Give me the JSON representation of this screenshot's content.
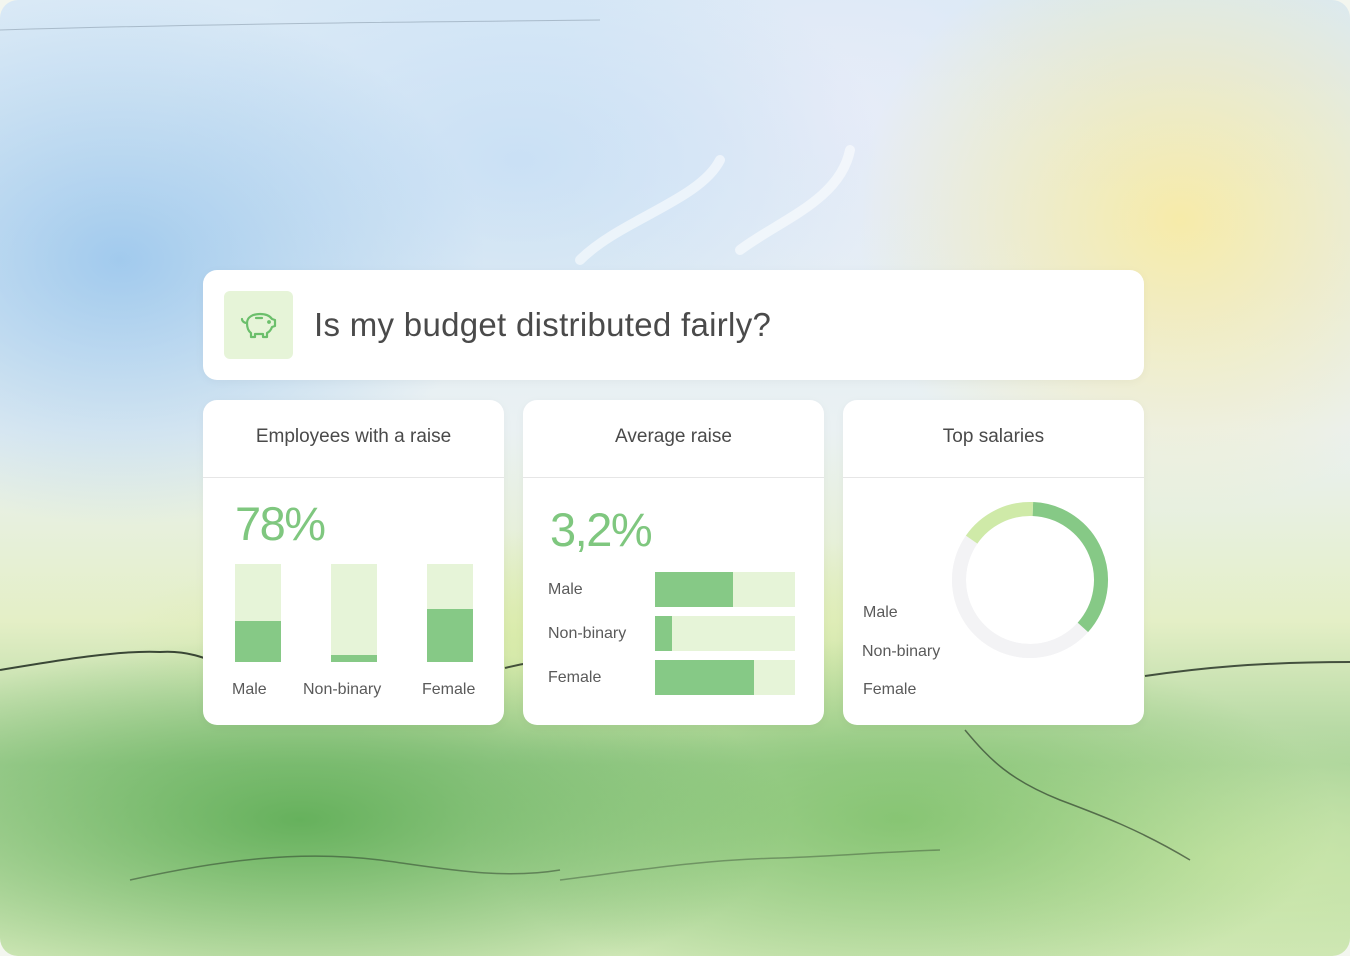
{
  "question": {
    "icon": "piggy-bank-icon",
    "text": "Is my budget distributed fairly?"
  },
  "colors": {
    "accent": "#86c986",
    "accent_light": "#e6f4d8",
    "accent_mid": "#cfeaa8",
    "value_text": "#7fc77f"
  },
  "panels": {
    "employees_with_raise": {
      "title": "Employees with a raise",
      "value": "78%",
      "bars": [
        {
          "label": "Male",
          "fraction": 0.42
        },
        {
          "label": "Non-binary",
          "fraction": 0.07
        },
        {
          "label": "Female",
          "fraction": 0.54
        }
      ]
    },
    "average_raise": {
      "title": "Average raise",
      "value": "3,2%",
      "bars": [
        {
          "label": "Male",
          "fraction": 0.56
        },
        {
          "label": "Non-binary",
          "fraction": 0.12
        },
        {
          "label": "Female",
          "fraction": 0.71
        }
      ]
    },
    "top_salaries": {
      "title": "Top salaries",
      "labels": [
        "Male",
        "Non-binary",
        "Female"
      ],
      "donut": [
        {
          "label": "Male",
          "fraction": 0.36
        },
        {
          "label": "Non-binary",
          "fraction": 0.16
        },
        {
          "label": "Female",
          "fraction": 0.48
        }
      ]
    }
  }
}
